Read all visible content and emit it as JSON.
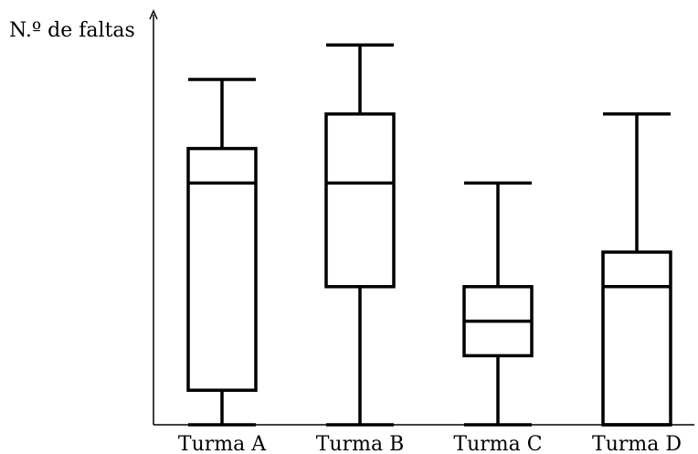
{
  "chart_data": {
    "type": "boxplot",
    "ylabel": "N.º de faltas",
    "xlabel": "",
    "title": "",
    "categories": [
      "Turma A",
      "Turma B",
      "Turma C",
      "Turma D"
    ],
    "boxes": [
      {
        "min": 0,
        "q1": 1,
        "median": 7,
        "q3": 8,
        "max": 10
      },
      {
        "min": 0,
        "q1": 4,
        "median": 7,
        "q3": 9,
        "max": 11
      },
      {
        "min": 0,
        "q1": 2,
        "median": 3,
        "q3": 4,
        "max": 7
      },
      {
        "min": 0,
        "q1": 0,
        "median": 4,
        "q3": 5,
        "max": 9
      }
    ],
    "ylim": [
      0,
      11.5
    ],
    "grid": false,
    "y_ticks_shown": false,
    "color": "#000000"
  }
}
